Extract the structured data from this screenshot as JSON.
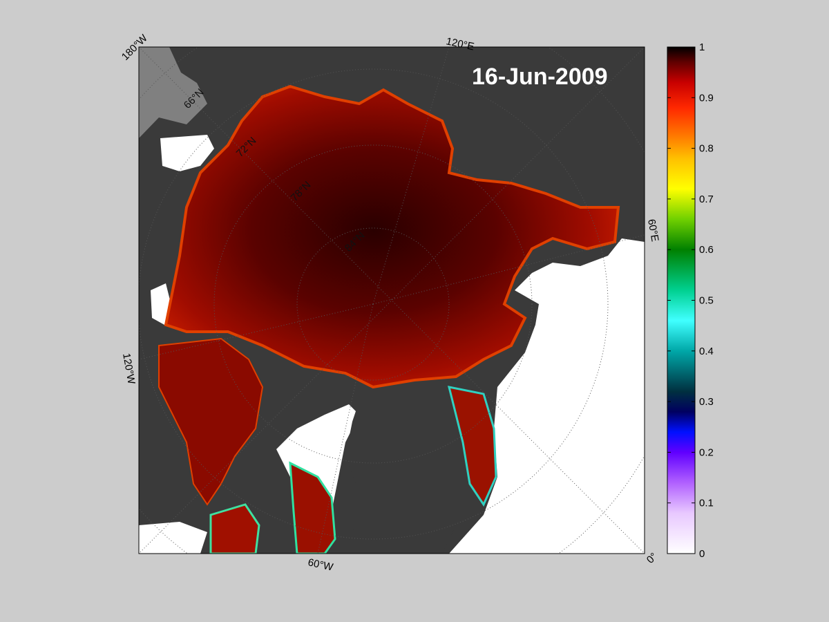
{
  "map": {
    "date_label": "16-Jun-2009",
    "longitude_labels": [
      "180°W",
      "120°E",
      "60°E",
      "0°",
      "60°W",
      "120°W"
    ],
    "latitude_labels": [
      "66°N",
      "72°N",
      "78°N",
      "84°N"
    ],
    "colors": {
      "figure_background": "#cccccc",
      "land": "#3a3a3a",
      "land_mask": "#808080",
      "open_water": "#ffffff",
      "ice_core": "#3a0000",
      "ice_mid": "#a00a00",
      "ice_edge": "#d81a00"
    }
  },
  "colorbar": {
    "min": 0,
    "max": 1,
    "tick_labels": [
      "1",
      "0.9",
      "0.8",
      "0.7",
      "0.6",
      "0.5",
      "0.4",
      "0.3",
      "0.2",
      "0.1",
      "0"
    ],
    "colormap_stops": [
      "#ffffff",
      "#e8c8ff",
      "#a040ff",
      "#4000ff",
      "#000070",
      "#003040",
      "#00b0b0",
      "#40ffff",
      "#00d080",
      "#008000",
      "#80e000",
      "#ffff00",
      "#ffc000",
      "#ff8000",
      "#ff3000",
      "#d80000",
      "#800000",
      "#000000"
    ]
  }
}
